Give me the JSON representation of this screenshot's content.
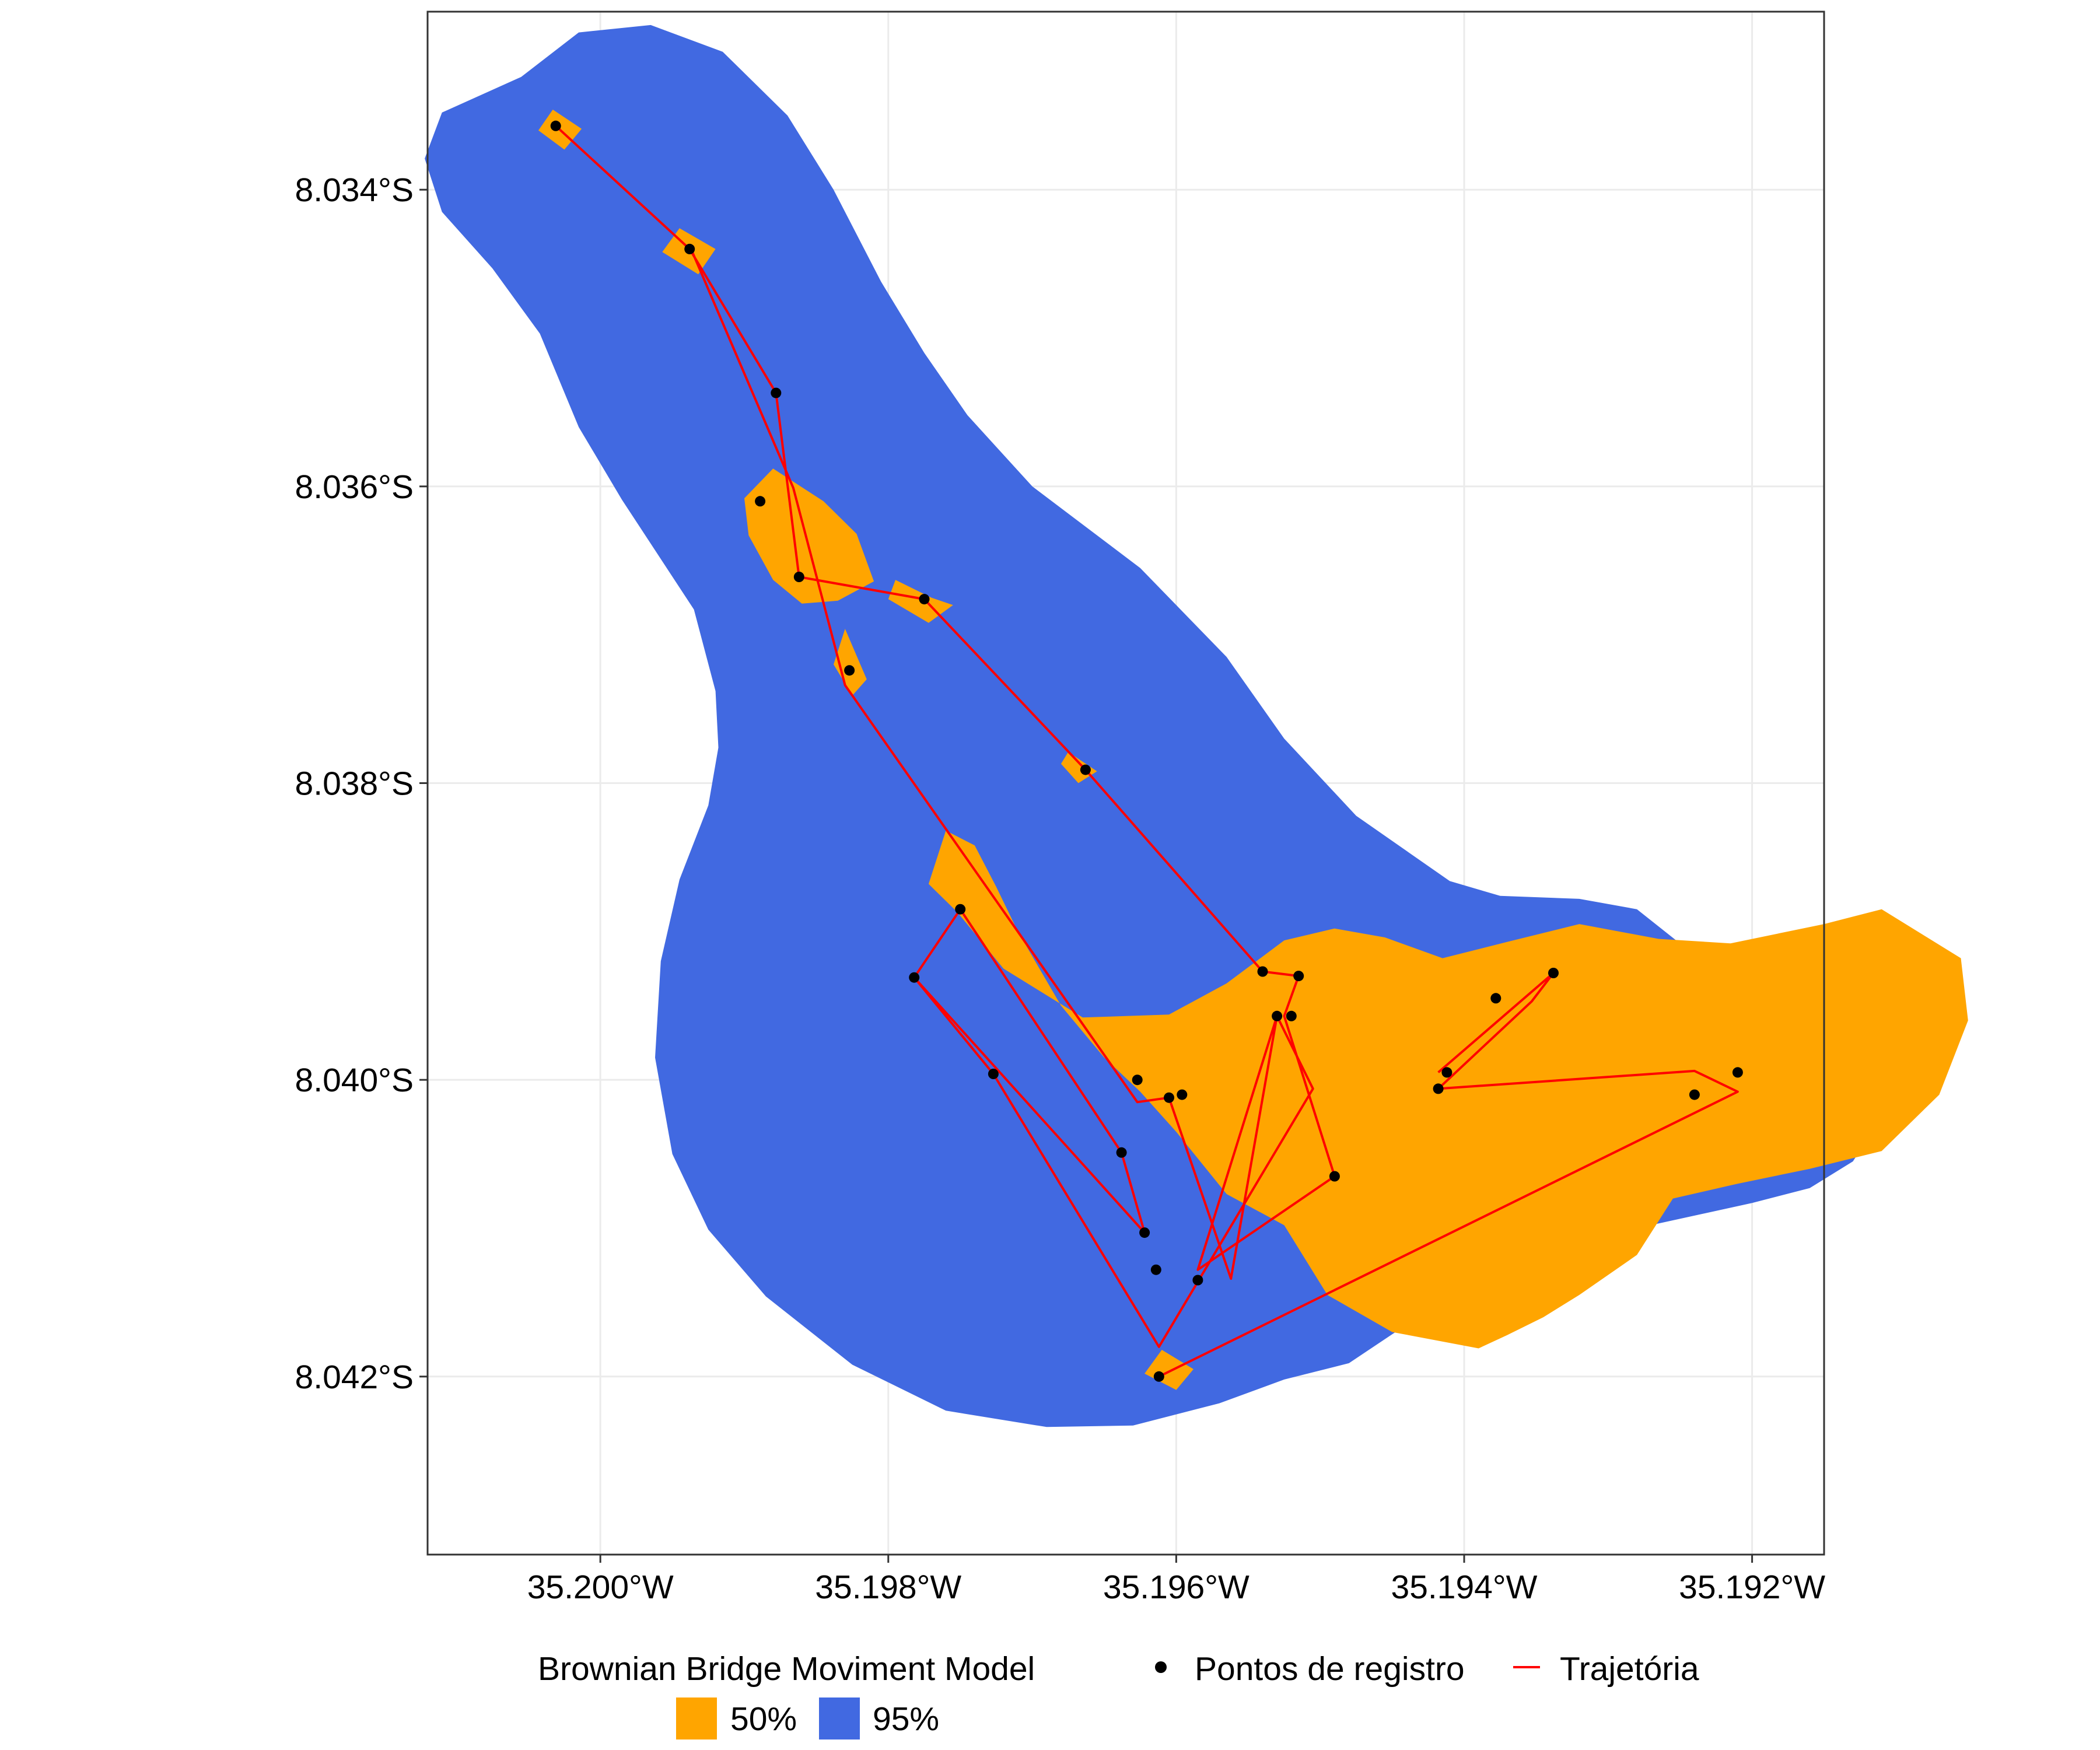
{
  "chart_data": {
    "type": "map",
    "title": "",
    "xlabel": "",
    "ylabel": "",
    "xlim": [
      -35.2012,
      -35.1915
    ],
    "ylim": [
      -8.0432,
      -8.0328
    ],
    "x_ticks": [
      {
        "value": -35.2,
        "label": "35.200°W"
      },
      {
        "value": -35.198,
        "label": "35.198°W"
      },
      {
        "value": -35.196,
        "label": "35.196°W"
      },
      {
        "value": -35.194,
        "label": "35.194°W"
      },
      {
        "value": -35.192,
        "label": "35.192°W"
      }
    ],
    "y_ticks": [
      {
        "value": -8.034,
        "label": "8.034°S"
      },
      {
        "value": -8.036,
        "label": "8.036°S"
      },
      {
        "value": -8.038,
        "label": "8.038°S"
      },
      {
        "value": -8.04,
        "label": "8.040°S"
      },
      {
        "value": -8.042,
        "label": "8.042°S"
      }
    ],
    "grid": true,
    "colors": {
      "contour_95": "#4169E1",
      "contour_50": "#FFA500",
      "trajectory": "#FF0000",
      "points": "#000000",
      "grid": "#EBEBEB",
      "panel_border": "#333333"
    },
    "contours": {
      "95": [
        [
          [
            -35.20055,
            -8.03324
          ],
          [
            -35.20015,
            -8.03294
          ],
          [
            -35.19965,
            -8.03289
          ],
          [
            -35.19915,
            -8.03307
          ],
          [
            -35.1987,
            -8.0335
          ],
          [
            -35.19838,
            -8.034
          ],
          [
            -35.19805,
            -8.03462
          ],
          [
            -35.19775,
            -8.0351
          ],
          [
            -35.19745,
            -8.03552
          ],
          [
            -35.197,
            -8.036
          ],
          [
            -35.19625,
            -8.03655
          ],
          [
            -35.19565,
            -8.03715
          ],
          [
            -35.19525,
            -8.0377
          ],
          [
            -35.19475,
            -8.03822
          ],
          [
            -35.1941,
            -8.03866
          ],
          [
            -35.19375,
            -8.03876
          ],
          [
            -35.1932,
            -8.03878
          ],
          [
            -35.1928,
            -8.03885
          ],
          [
            -35.19245,
            -8.03912
          ],
          [
            -35.19215,
            -8.03943
          ],
          [
            -35.1918,
            -8.03955
          ],
          [
            -35.19145,
            -8.03969
          ],
          [
            -35.19115,
            -8.03997
          ],
          [
            -35.1911,
            -8.04025
          ],
          [
            -35.1913,
            -8.04055
          ],
          [
            -35.1916,
            -8.04073
          ],
          [
            -35.192,
            -8.04083
          ],
          [
            -35.1928,
            -8.041
          ],
          [
            -35.1935,
            -8.04114
          ],
          [
            -35.1939,
            -8.04128
          ],
          [
            -35.1944,
            -8.04165
          ],
          [
            -35.1948,
            -8.04191
          ],
          [
            -35.19525,
            -8.04202
          ],
          [
            -35.1957,
            -8.04218
          ],
          [
            -35.1963,
            -8.04233
          ],
          [
            -35.1969,
            -8.04234
          ],
          [
            -35.1976,
            -8.04223
          ],
          [
            -35.19825,
            -8.04192
          ],
          [
            -35.19885,
            -8.04146
          ],
          [
            -35.19925,
            -8.04101
          ],
          [
            -35.1995,
            -8.0405
          ],
          [
            -35.19962,
            -8.03985
          ],
          [
            -35.19958,
            -8.0392
          ],
          [
            -35.19945,
            -8.03865
          ],
          [
            -35.19925,
            -8.03815
          ],
          [
            -35.19918,
            -8.03776
          ],
          [
            -35.1992,
            -8.03738
          ],
          [
            -35.19935,
            -8.03683
          ],
          [
            -35.19985,
            -8.03609
          ],
          [
            -35.20015,
            -8.0356
          ],
          [
            -35.20042,
            -8.03497
          ],
          [
            -35.20075,
            -8.03453
          ],
          [
            -35.2011,
            -8.03415
          ],
          [
            -35.20122,
            -8.03379
          ],
          [
            -35.2011,
            -8.03348
          ],
          [
            -35.20055,
            -8.03324
          ]
        ]
      ],
      "50": [
        [
          [
            -35.20033,
            -8.03346
          ],
          [
            -35.20013,
            -8.03359
          ],
          [
            -35.20025,
            -8.03373
          ],
          [
            -35.20043,
            -8.0336
          ],
          [
            -35.20033,
            -8.03346
          ]
        ],
        [
          [
            -35.19945,
            -8.03426
          ],
          [
            -35.1992,
            -8.0344
          ],
          [
            -35.19932,
            -8.03457
          ],
          [
            -35.19957,
            -8.03442
          ],
          [
            -35.19945,
            -8.03426
          ]
        ],
        [
          [
            -35.1988,
            -8.03588
          ],
          [
            -35.199,
            -8.03608
          ],
          [
            -35.19897,
            -8.03633
          ],
          [
            -35.1988,
            -8.03663
          ],
          [
            -35.1986,
            -8.03679
          ],
          [
            -35.19835,
            -8.03677
          ],
          [
            -35.1981,
            -8.03664
          ],
          [
            -35.19822,
            -8.03632
          ],
          [
            -35.19845,
            -8.0361
          ],
          [
            -35.1988,
            -8.03588
          ]
        ],
        [
          [
            -35.19795,
            -8.03663
          ],
          [
            -35.1977,
            -8.03675
          ],
          [
            -35.19755,
            -8.0368
          ],
          [
            -35.19772,
            -8.03692
          ],
          [
            -35.198,
            -8.03676
          ],
          [
            -35.19795,
            -8.03663
          ]
        ],
        [
          [
            -35.1983,
            -8.03696
          ],
          [
            -35.19815,
            -8.0373
          ],
          [
            -35.19825,
            -8.03741
          ],
          [
            -35.19838,
            -8.0372
          ],
          [
            -35.1983,
            -8.03696
          ]
        ],
        [
          [
            -35.19675,
            -8.03779
          ],
          [
            -35.19655,
            -8.03792
          ],
          [
            -35.19668,
            -8.038
          ],
          [
            -35.1968,
            -8.03787
          ],
          [
            -35.19675,
            -8.03779
          ]
        ],
        [
          [
            -35.19772,
            -8.03868
          ],
          [
            -35.19752,
            -8.03887
          ],
          [
            -35.1972,
            -8.03925
          ],
          [
            -35.19665,
            -8.03958
          ],
          [
            -35.19605,
            -8.03956
          ],
          [
            -35.19565,
            -8.03935
          ],
          [
            -35.19525,
            -8.03906
          ],
          [
            -35.1949,
            -8.03898
          ],
          [
            -35.19455,
            -8.03904
          ],
          [
            -35.19415,
            -8.03918
          ],
          [
            -35.1937,
            -8.03907
          ],
          [
            -35.1932,
            -8.03895
          ],
          [
            -35.19265,
            -8.03905
          ],
          [
            -35.19215,
            -8.03908
          ],
          [
            -35.1915,
            -8.03895
          ],
          [
            -35.1911,
            -8.03885
          ],
          [
            -35.19055,
            -8.03918
          ],
          [
            -35.1905,
            -8.0396
          ],
          [
            -35.1907,
            -8.0401
          ],
          [
            -35.1911,
            -8.04048
          ],
          [
            -35.1916,
            -8.0406
          ],
          [
            -35.1921,
            -8.0407
          ],
          [
            -35.19255,
            -8.0408
          ],
          [
            -35.1928,
            -8.04118
          ],
          [
            -35.1932,
            -8.04145
          ],
          [
            -35.19345,
            -8.0416
          ],
          [
            -35.1937,
            -8.04172
          ],
          [
            -35.1939,
            -8.04181
          ],
          [
            -35.1945,
            -8.0417
          ],
          [
            -35.19495,
            -8.04145
          ],
          [
            -35.19525,
            -8.04098
          ],
          [
            -35.19565,
            -8.04077
          ],
          [
            -35.196,
            -8.04035
          ],
          [
            -35.19625,
            -8.04008
          ],
          [
            -35.1965,
            -8.03985
          ],
          [
            -35.1968,
            -8.0395
          ],
          [
            -35.1971,
            -8.039
          ],
          [
            -35.19725,
            -8.0387
          ],
          [
            -35.1974,
            -8.03842
          ],
          [
            -35.1976,
            -8.03832
          ],
          [
            -35.19772,
            -8.03868
          ]
        ],
        [
          [
            -35.19378,
            -8.03993
          ],
          [
            -35.19352,
            -8.04011
          ],
          [
            -35.1937,
            -8.04027
          ],
          [
            -35.194,
            -8.04006
          ],
          [
            -35.19378,
            -8.03993
          ]
        ],
        [
          [
            -35.1961,
            -8.04182
          ],
          [
            -35.19588,
            -8.04195
          ],
          [
            -35.196,
            -8.04209
          ],
          [
            -35.19622,
            -8.04198
          ],
          [
            -35.1961,
            -8.04182
          ]
        ]
      ]
    },
    "trajectory": [
      [
        -35.20031,
        -8.03357
      ],
      [
        -35.19938,
        -8.0344
      ],
      [
        -35.19878,
        -8.03537
      ],
      [
        -35.19862,
        -8.03661
      ],
      [
        -35.19775,
        -8.03676
      ],
      [
        -35.19663,
        -8.03791
      ],
      [
        -35.1954,
        -8.03927
      ],
      [
        -35.19515,
        -8.0393
      ],
      [
        -35.19525,
        -8.03957
      ],
      [
        -35.1949,
        -8.04065
      ],
      [
        -35.19585,
        -8.04128
      ],
      [
        -35.1953,
        -8.03957
      ],
      [
        -35.19562,
        -8.04134
      ],
      [
        -35.19605,
        -8.04012
      ],
      [
        -35.19627,
        -8.04015
      ],
      [
        -35.1983,
        -8.03734
      ],
      [
        -35.19866,
        -8.03601
      ],
      [
        -35.19937,
        -8.0344
      ]
    ],
    "trajectory_2": [
      [
        -35.19782,
        -8.03931
      ],
      [
        -35.19622,
        -8.04103
      ],
      [
        -35.19638,
        -8.04049
      ],
      [
        -35.1975,
        -8.03885
      ],
      [
        -35.19782,
        -8.03931
      ],
      [
        -35.19727,
        -8.03996
      ],
      [
        -35.19612,
        -8.0418
      ],
      [
        -35.19505,
        -8.04006
      ],
      [
        -35.1953,
        -8.03957
      ]
    ],
    "trajectory_3": [
      [
        -35.19418,
        -8.03995
      ],
      [
        -35.19338,
        -8.03928
      ],
      [
        -35.19353,
        -8.03947
      ],
      [
        -35.19418,
        -8.04006
      ],
      [
        -35.1924,
        -8.03994
      ],
      [
        -35.1921,
        -8.04008
      ],
      [
        -35.19612,
        -8.042
      ]
    ],
    "points": [
      [
        -35.20031,
        -8.03357
      ],
      [
        -35.19938,
        -8.0344
      ],
      [
        -35.19878,
        -8.03537
      ],
      [
        -35.19889,
        -8.0361
      ],
      [
        -35.19862,
        -8.03661
      ],
      [
        -35.19775,
        -8.03676
      ],
      [
        -35.19827,
        -8.03724
      ],
      [
        -35.19663,
        -8.03791
      ],
      [
        -35.1975,
        -8.03885
      ],
      [
        -35.19782,
        -8.03931
      ],
      [
        -35.19727,
        -8.03996
      ],
      [
        -35.19638,
        -8.04049
      ],
      [
        -35.19622,
        -8.04103
      ],
      [
        -35.19614,
        -8.04128
      ],
      [
        -35.19612,
        -8.042
      ],
      [
        -35.19627,
        -8.04
      ],
      [
        -35.19605,
        -8.04012
      ],
      [
        -35.19596,
        -8.0401
      ],
      [
        -35.19585,
        -8.04135
      ],
      [
        -35.1954,
        -8.03927
      ],
      [
        -35.19515,
        -8.0393
      ],
      [
        -35.1953,
        -8.03957
      ],
      [
        -35.1952,
        -8.03957
      ],
      [
        -35.1949,
        -8.04065
      ],
      [
        -35.19418,
        -8.04006
      ],
      [
        -35.19412,
        -8.03995
      ],
      [
        -35.19378,
        -8.03945
      ],
      [
        -35.19338,
        -8.03928
      ],
      [
        -35.1924,
        -8.0401
      ],
      [
        -35.1921,
        -8.03995
      ]
    ]
  },
  "legend": {
    "contour_title": "Brownian Bridge Moviment Model",
    "contour_items": [
      {
        "label": "50%",
        "color": "#FFA500"
      },
      {
        "label": "95%",
        "color": "#4169E1"
      }
    ],
    "points_label": "Pontos de registro",
    "trajectory_label": "Trajetória"
  }
}
